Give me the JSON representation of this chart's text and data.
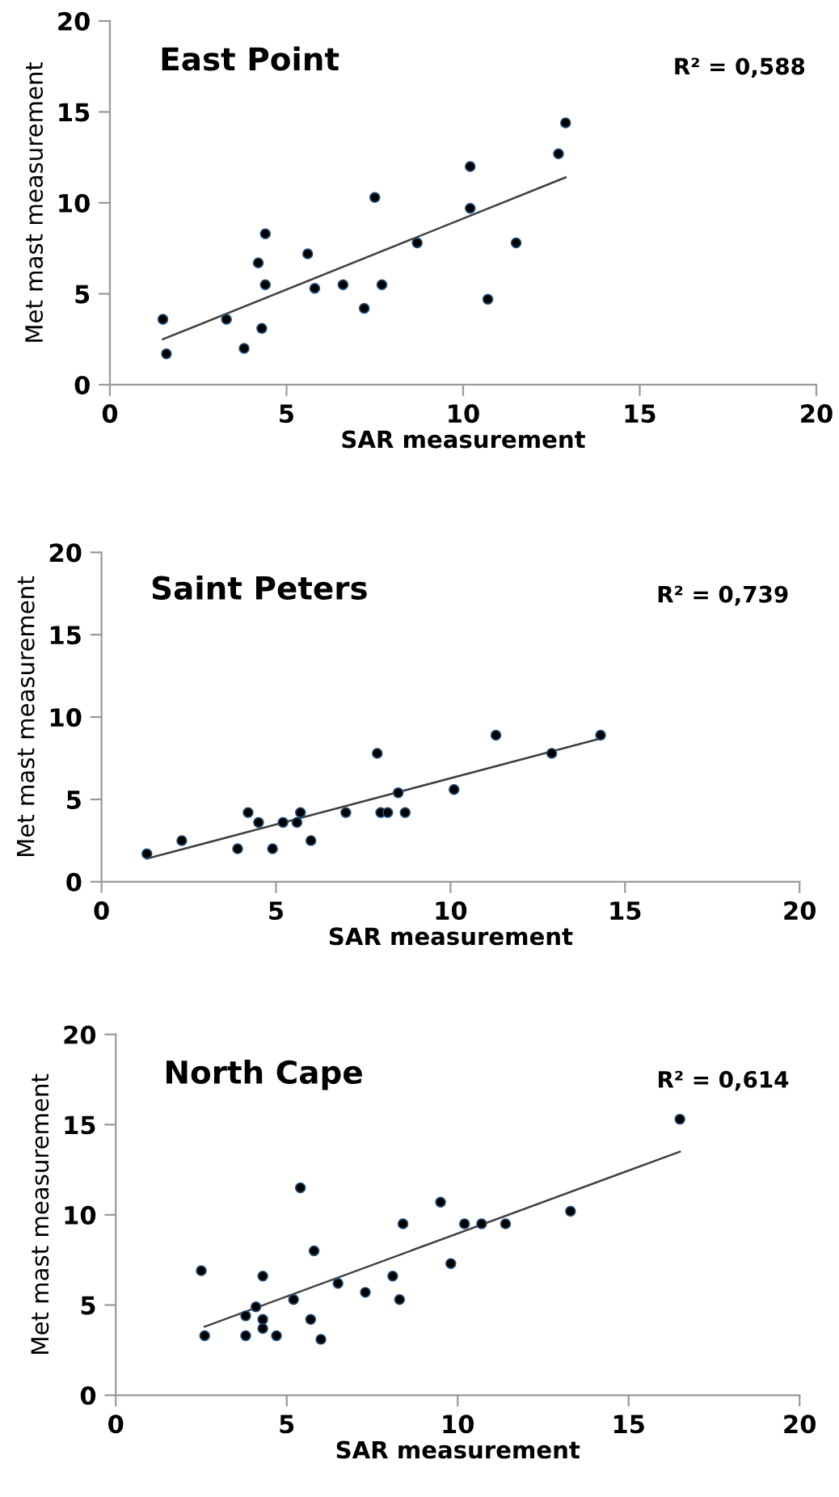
{
  "chart_data": [
    {
      "type": "scatter",
      "title": "East Point",
      "xlabel": "SAR measurement",
      "ylabel": "Met mast measurement",
      "annotations": [
        "R² = 0,588"
      ],
      "xlim": [
        0,
        20
      ],
      "ylim": [
        0,
        20
      ],
      "xticks": [
        0,
        5,
        10,
        15,
        20
      ],
      "yticks": [
        0,
        5,
        10,
        15,
        20
      ],
      "grid": false,
      "legend": false,
      "series": [
        {
          "color": "#000000",
          "marker": "circle",
          "x": [
            1.5,
            1.6,
            3.3,
            3.8,
            4.2,
            4.3,
            4.4,
            4.4,
            5.6,
            5.8,
            6.6,
            7.2,
            7.5,
            7.7,
            8.7,
            10.2,
            10.2,
            10.7,
            11.5,
            12.7,
            12.9
          ],
          "values": [
            3.6,
            1.7,
            3.6,
            2.0,
            6.7,
            3.1,
            5.5,
            8.3,
            7.2,
            5.3,
            5.5,
            4.2,
            10.3,
            5.5,
            7.8,
            9.7,
            12.0,
            4.7,
            7.8,
            12.7,
            14.4
          ]
        },
        {
          "type": "line",
          "marker": "none",
          "color": "#404040",
          "x": [
            1.5,
            12.9
          ],
          "values": [
            2.5,
            11.4
          ]
        }
      ]
    },
    {
      "type": "scatter",
      "title": "Saint Peters",
      "xlabel": "SAR measurement",
      "ylabel": "Met mast measurement",
      "annotations": [
        "R² = 0,739"
      ],
      "xlim": [
        0,
        20
      ],
      "ylim": [
        0,
        20
      ],
      "xticks": [
        0,
        5,
        10,
        15,
        20
      ],
      "yticks": [
        0,
        5,
        10,
        15,
        20
      ],
      "grid": false,
      "legend": false,
      "series": [
        {
          "color": "#000000",
          "marker": "circle",
          "x": [
            1.3,
            2.3,
            3.9,
            4.2,
            4.5,
            4.9,
            5.2,
            5.6,
            5.7,
            6.0,
            7.0,
            7.9,
            8.0,
            8.2,
            8.5,
            8.7,
            10.1,
            11.3,
            12.9,
            14.3
          ],
          "values": [
            1.7,
            2.5,
            2.0,
            4.2,
            3.6,
            2.0,
            3.6,
            3.6,
            4.2,
            2.5,
            4.2,
            7.8,
            4.2,
            4.2,
            5.4,
            4.2,
            5.6,
            8.9,
            7.8,
            8.9
          ]
        },
        {
          "type": "line",
          "marker": "none",
          "color": "#404040",
          "x": [
            1.3,
            14.3
          ],
          "values": [
            1.4,
            8.7
          ]
        }
      ]
    },
    {
      "type": "scatter",
      "title": "North Cape",
      "xlabel": "SAR measurement",
      "ylabel": "Met mast measurement",
      "annotations": [
        "R² = 0,614"
      ],
      "xlim": [
        0,
        20
      ],
      "ylim": [
        0,
        20
      ],
      "xticks": [
        0,
        5,
        10,
        15,
        20
      ],
      "yticks": [
        0,
        5,
        10,
        15,
        20
      ],
      "grid": false,
      "legend": false,
      "series": [
        {
          "color": "#000000",
          "marker": "circle",
          "x": [
            2.5,
            2.6,
            3.8,
            3.8,
            4.1,
            4.3,
            4.3,
            4.3,
            4.7,
            5.2,
            5.4,
            5.7,
            5.8,
            6.0,
            6.5,
            7.3,
            8.1,
            8.3,
            8.4,
            9.5,
            9.8,
            10.2,
            10.7,
            11.4,
            13.3,
            16.5
          ],
          "values": [
            6.9,
            3.3,
            4.4,
            3.3,
            4.9,
            4.2,
            3.7,
            6.6,
            3.3,
            5.3,
            11.5,
            4.2,
            8.0,
            3.1,
            6.2,
            5.7,
            6.6,
            5.3,
            9.5,
            10.7,
            7.3,
            9.5,
            9.5,
            9.5,
            10.2,
            15.3
          ]
        },
        {
          "type": "line",
          "marker": "none",
          "color": "#404040",
          "x": [
            2.6,
            16.5
          ],
          "values": [
            3.8,
            13.5
          ]
        }
      ]
    }
  ]
}
